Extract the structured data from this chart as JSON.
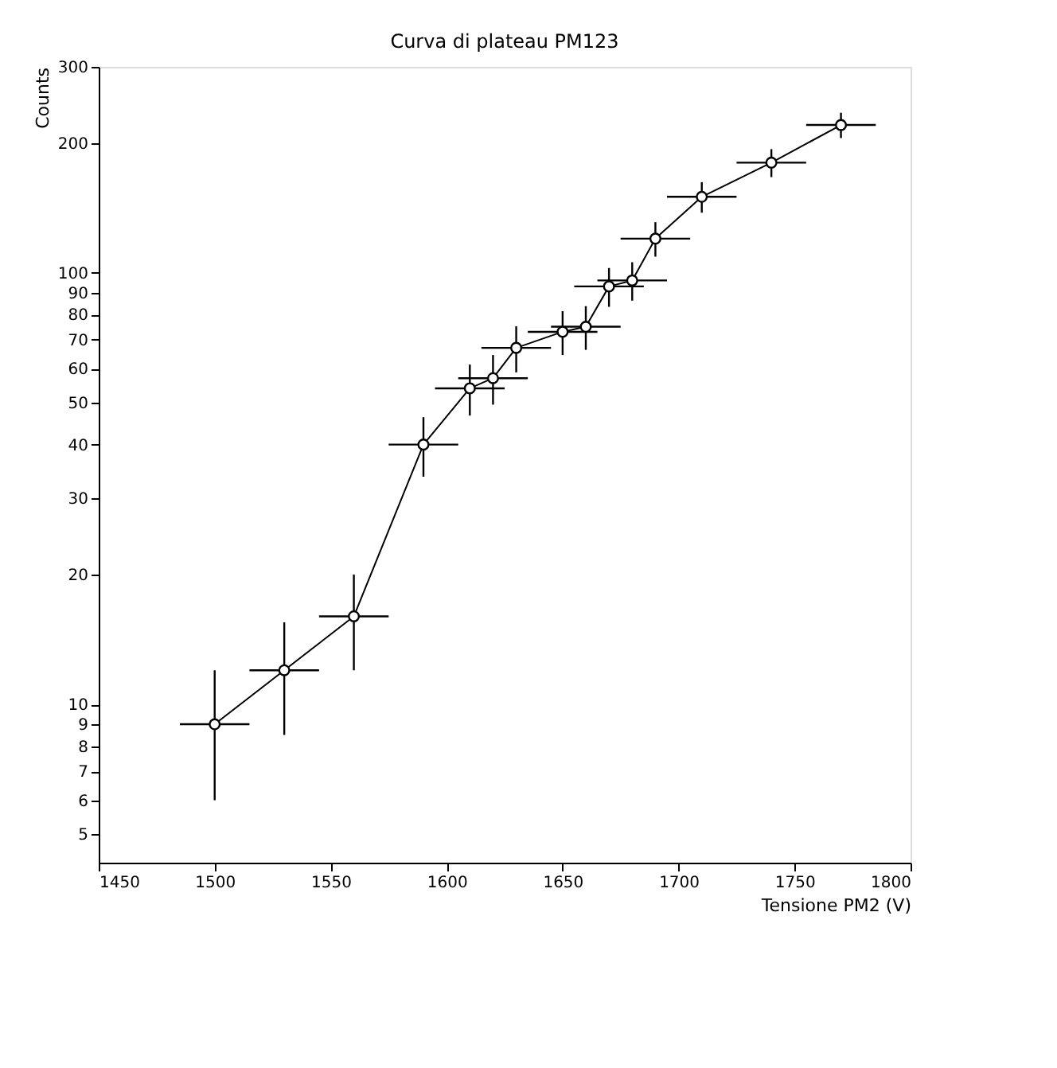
{
  "chart_data": {
    "type": "line",
    "title": "Curva di plateau PM123",
    "xlabel": "Tensione PM2 (V)",
    "ylabel": "Counts",
    "x": [
      1500,
      1530,
      1560,
      1590,
      1610,
      1620,
      1630,
      1650,
      1660,
      1670,
      1680,
      1690,
      1710,
      1740,
      1770
    ],
    "series": [
      {
        "color": "#000000",
        "values": [
          9,
          12,
          16,
          40,
          54,
          57,
          67,
          73,
          75,
          93,
          96,
          120,
          150,
          180,
          220
        ],
        "errors": [
          3,
          3.5,
          4,
          6.3,
          7.3,
          7.5,
          8.2,
          8.5,
          8.7,
          9.6,
          9.8,
          11,
          12.2,
          13.4,
          14.8
        ],
        "xerrors": [
          15,
          15,
          15,
          15,
          15,
          15,
          15,
          15,
          15,
          15,
          15,
          15,
          15,
          15,
          15
        ]
      }
    ],
    "xlim": [
      1450,
      1800
    ],
    "xticks": [
      1450,
      1500,
      1550,
      1600,
      1650,
      1700,
      1750,
      1800
    ],
    "ylim": [
      4.3,
      300
    ],
    "yticks": [
      5,
      6,
      7,
      8,
      9,
      10,
      20,
      30,
      40,
      50,
      60,
      70,
      80,
      90,
      100,
      200,
      300
    ],
    "log": "y",
    "grid": false,
    "marker": "circle",
    "line_style": "solid"
  }
}
